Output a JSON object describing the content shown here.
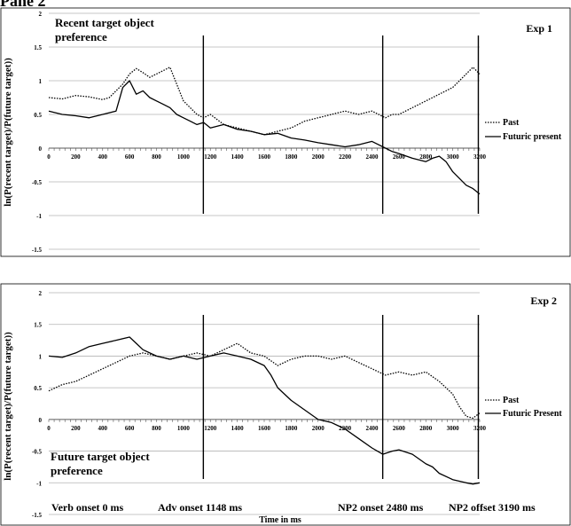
{
  "header_fragment": "Pane 2",
  "chart_data": [
    {
      "type": "line",
      "exp_label": "Exp 1",
      "annotation": "Recent target object preference",
      "annotation_lines": [
        "Recent target object",
        "preference"
      ],
      "ylabel": "ln(P(recent target)/P(future target))",
      "xlabel": "",
      "xlim": [
        0,
        3200
      ],
      "ylim": [
        -1.5,
        2
      ],
      "xticks": [
        "0",
        "200",
        "400",
        "600",
        "800",
        "1000",
        "1200",
        "1400",
        "1600",
        "1800",
        "2000",
        "2200",
        "2400",
        "2600",
        "2800",
        "3000",
        "3200"
      ],
      "yticks": [
        "2",
        "1.5",
        "1",
        "0.5",
        "0",
        "-0.5",
        "-1",
        "-1.5"
      ],
      "gridlines": "horizontal",
      "legend_position": "right",
      "event_markers_ms": [
        1148,
        2480,
        3190
      ],
      "series": [
        {
          "name": "Past",
          "style": "dotted",
          "x": [
            0,
            100,
            200,
            300,
            400,
            450,
            500,
            550,
            600,
            650,
            700,
            750,
            800,
            850,
            900,
            950,
            1000,
            1050,
            1100,
            1150,
            1200,
            1300,
            1400,
            1500,
            1600,
            1700,
            1800,
            1900,
            2000,
            2100,
            2200,
            2300,
            2400,
            2500,
            2550,
            2600,
            2700,
            2800,
            2900,
            3000,
            3050,
            3100,
            3150,
            3200
          ],
          "values": [
            0.75,
            0.73,
            0.78,
            0.76,
            0.72,
            0.75,
            0.85,
            0.95,
            1.1,
            1.18,
            1.12,
            1.05,
            1.1,
            1.15,
            1.2,
            0.95,
            0.7,
            0.6,
            0.5,
            0.45,
            0.5,
            0.35,
            0.3,
            0.25,
            0.2,
            0.25,
            0.3,
            0.4,
            0.45,
            0.5,
            0.55,
            0.5,
            0.55,
            0.45,
            0.5,
            0.5,
            0.6,
            0.7,
            0.8,
            0.9,
            1.0,
            1.1,
            1.2,
            1.1
          ]
        },
        {
          "name": "Futuric present",
          "style": "solid",
          "x": [
            0,
            100,
            200,
            300,
            400,
            500,
            550,
            600,
            650,
            700,
            750,
            800,
            850,
            900,
            950,
            1000,
            1050,
            1100,
            1150,
            1200,
            1300,
            1400,
            1500,
            1600,
            1700,
            1800,
            1900,
            2000,
            2100,
            2200,
            2300,
            2400,
            2450,
            2500,
            2550,
            2600,
            2700,
            2800,
            2850,
            2900,
            2950,
            3000,
            3050,
            3100,
            3150,
            3200
          ],
          "values": [
            0.55,
            0.5,
            0.48,
            0.45,
            0.5,
            0.55,
            0.9,
            1.0,
            0.8,
            0.85,
            0.75,
            0.7,
            0.65,
            0.6,
            0.5,
            0.45,
            0.4,
            0.35,
            0.38,
            0.3,
            0.35,
            0.28,
            0.25,
            0.2,
            0.22,
            0.15,
            0.12,
            0.08,
            0.05,
            0.02,
            0.05,
            0.1,
            0.05,
            0.0,
            -0.05,
            -0.08,
            -0.15,
            -0.2,
            -0.15,
            -0.12,
            -0.2,
            -0.35,
            -0.45,
            -0.55,
            -0.6,
            -0.68
          ]
        }
      ]
    },
    {
      "type": "line",
      "exp_label": "Exp 2",
      "annotation": "Future target object preference",
      "annotation_lines": [
        "Future target object",
        "preference"
      ],
      "ylabel": "ln(P(recent target)/P(future target))",
      "xlabel": "Time in ms",
      "xlim": [
        0,
        3200
      ],
      "ylim": [
        -1.5,
        2
      ],
      "xticks": [
        "0",
        "200",
        "400",
        "600",
        "800",
        "1000",
        "1200",
        "1400",
        "1600",
        "1800",
        "2000",
        "2200",
        "2400",
        "2600",
        "2800",
        "3000",
        "3200"
      ],
      "yticks": [
        "2",
        "1.5",
        "1",
        "0.5",
        "0",
        "-0.5",
        "-1",
        "-1.5"
      ],
      "gridlines": "horizontal",
      "legend_position": "right",
      "event_markers_ms": [
        1148,
        2480,
        3190
      ],
      "event_labels": [
        "Verb onset 0 ms",
        "Adv onset 1148 ms",
        "NP2 onset 2480 ms",
        "NP2 offset 3190 ms"
      ],
      "series": [
        {
          "name": "Past",
          "style": "dotted",
          "x": [
            0,
            100,
            200,
            300,
            400,
            500,
            600,
            700,
            800,
            900,
            1000,
            1100,
            1200,
            1300,
            1400,
            1500,
            1600,
            1700,
            1800,
            1900,
            2000,
            2100,
            2200,
            2300,
            2400,
            2500,
            2600,
            2700,
            2800,
            2900,
            3000,
            3050,
            3100,
            3150,
            3200
          ],
          "values": [
            0.45,
            0.55,
            0.6,
            0.7,
            0.8,
            0.9,
            1.0,
            1.05,
            1.0,
            0.95,
            1.0,
            1.05,
            1.0,
            1.1,
            1.2,
            1.05,
            1.0,
            0.85,
            0.95,
            1.0,
            1.0,
            0.95,
            1.0,
            0.9,
            0.8,
            0.7,
            0.75,
            0.7,
            0.75,
            0.6,
            0.4,
            0.2,
            0.05,
            0.02,
            0.1
          ]
        },
        {
          "name": "Futuric Present",
          "style": "solid",
          "x": [
            0,
            100,
            200,
            300,
            400,
            500,
            600,
            650,
            700,
            800,
            900,
            1000,
            1100,
            1200,
            1300,
            1400,
            1500,
            1600,
            1650,
            1700,
            1800,
            1900,
            2000,
            2100,
            2200,
            2300,
            2400,
            2480,
            2550,
            2600,
            2700,
            2800,
            2850,
            2900,
            3000,
            3100,
            3150,
            3200
          ],
          "values": [
            1.0,
            0.98,
            1.05,
            1.15,
            1.2,
            1.25,
            1.3,
            1.2,
            1.1,
            1.0,
            0.95,
            1.0,
            0.95,
            1.0,
            1.05,
            1.0,
            0.95,
            0.85,
            0.7,
            0.5,
            0.3,
            0.15,
            0.0,
            -0.05,
            -0.15,
            -0.3,
            -0.45,
            -0.55,
            -0.5,
            -0.48,
            -0.55,
            -0.7,
            -0.75,
            -0.85,
            -0.95,
            -1.0,
            -1.02,
            -1.0
          ]
        }
      ]
    }
  ]
}
